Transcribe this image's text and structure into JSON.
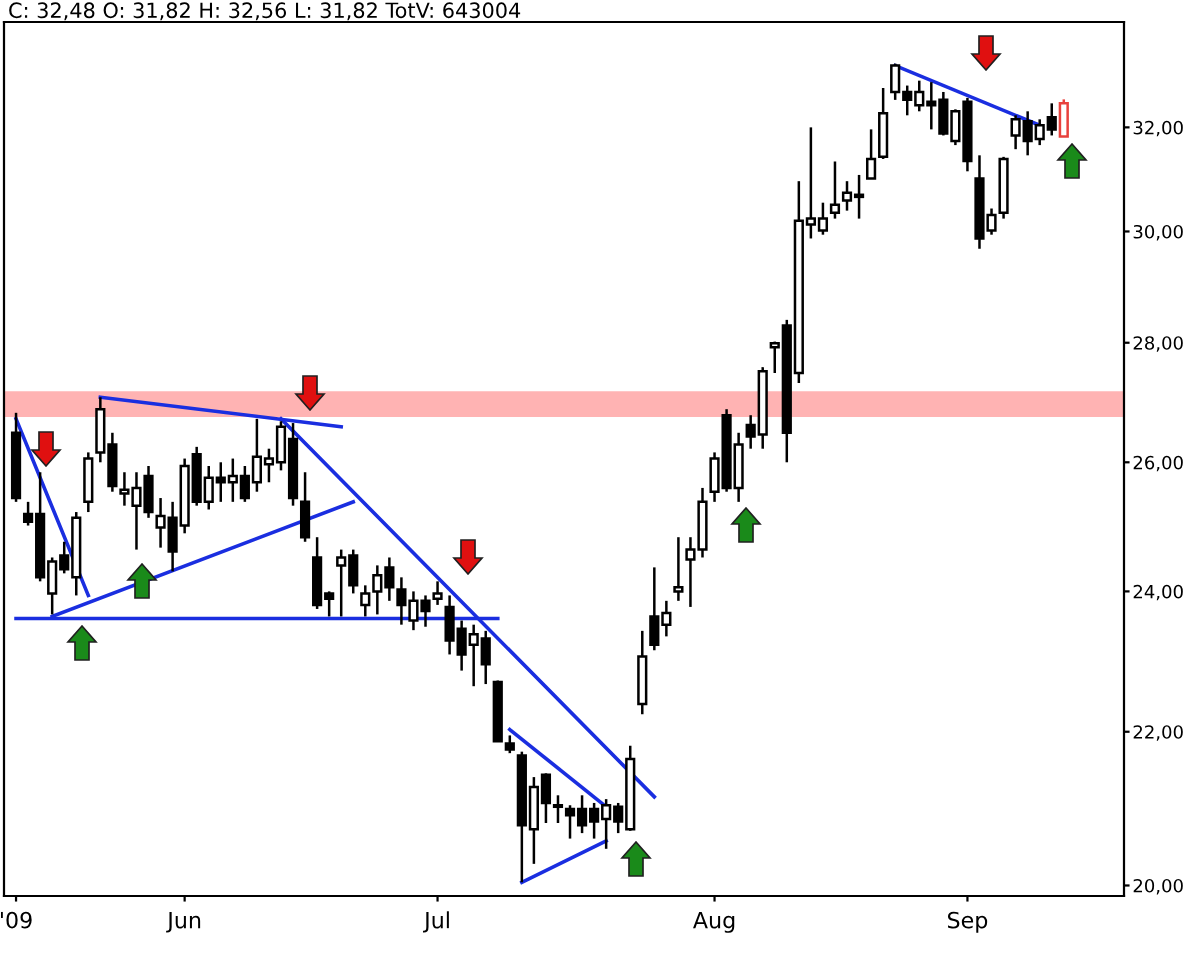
{
  "chart_data": {
    "type": "candlestick",
    "title": "C: 32,48 O: 31,82 H: 32,56 L: 31,82 TotV: 643004",
    "categories": [
      "'09",
      null,
      null,
      null,
      null,
      null,
      null,
      null,
      null,
      null,
      null,
      null,
      null,
      null,
      "Jun",
      null,
      null,
      null,
      null,
      null,
      null,
      null,
      null,
      null,
      null,
      null,
      null,
      null,
      null,
      null,
      null,
      null,
      null,
      null,
      null,
      "Jul",
      null,
      null,
      null,
      null,
      null,
      null,
      null,
      null,
      null,
      null,
      null,
      null,
      null,
      null,
      null,
      null,
      null,
      null,
      null,
      null,
      null,
      null,
      "Aug",
      null,
      null,
      null,
      null,
      null,
      null,
      null,
      null,
      null,
      null,
      null,
      null,
      null,
      null,
      null,
      null,
      null,
      null,
      null,
      null,
      "Sep",
      null,
      null,
      null,
      null,
      null,
      null,
      null,
      null
    ],
    "ohlc": [
      [
        26.48,
        26.81,
        25.37,
        25.43
      ],
      [
        25.18,
        25.37,
        25.0,
        25.06
      ],
      [
        25.18,
        25.84,
        24.15,
        24.21
      ],
      [
        23.97,
        24.51,
        23.66,
        24.45
      ],
      [
        24.54,
        24.75,
        24.27,
        24.33
      ],
      [
        24.21,
        25.21,
        23.94,
        25.12
      ],
      [
        25.37,
        26.16,
        25.21,
        26.06
      ],
      [
        26.16,
        27.07,
        26.0,
        26.87
      ],
      [
        26.29,
        26.48,
        25.53,
        25.62
      ],
      [
        25.5,
        25.84,
        25.31,
        25.56
      ],
      [
        25.31,
        25.84,
        24.63,
        25.59
      ],
      [
        25.78,
        25.94,
        25.12,
        25.21
      ],
      [
        24.97,
        25.43,
        24.66,
        25.15
      ],
      [
        25.12,
        25.37,
        24.3,
        24.6
      ],
      [
        25.0,
        26.06,
        24.88,
        25.94
      ],
      [
        26.13,
        26.25,
        25.31,
        25.37
      ],
      [
        25.37,
        25.94,
        25.25,
        25.75
      ],
      [
        25.75,
        26.0,
        25.37,
        25.68
      ],
      [
        25.68,
        26.06,
        25.37,
        25.78
      ],
      [
        25.78,
        25.94,
        25.37,
        25.43
      ],
      [
        25.68,
        26.71,
        25.53,
        26.09
      ],
      [
        25.97,
        26.22,
        25.68,
        26.06
      ],
      [
        26.0,
        26.67,
        25.87,
        26.58
      ],
      [
        26.38,
        26.64,
        25.31,
        25.43
      ],
      [
        25.37,
        25.84,
        24.75,
        24.82
      ],
      [
        24.51,
        24.82,
        23.74,
        23.8
      ],
      [
        23.97,
        24.0,
        23.63,
        23.89
      ],
      [
        24.39,
        24.63,
        23.63,
        24.51
      ],
      [
        24.54,
        24.63,
        23.97,
        24.09
      ],
      [
        23.8,
        24.09,
        23.63,
        23.97
      ],
      [
        24.0,
        24.39,
        23.66,
        24.24
      ],
      [
        24.36,
        24.51,
        23.86,
        24.06
      ],
      [
        24.03,
        24.21,
        23.51,
        23.8
      ],
      [
        23.57,
        24.0,
        23.43,
        23.86
      ],
      [
        23.86,
        23.94,
        23.48,
        23.71
      ],
      [
        23.89,
        24.15,
        23.8,
        23.97
      ],
      [
        23.77,
        23.94,
        23.08,
        23.28
      ],
      [
        23.45,
        23.57,
        22.85,
        23.08
      ],
      [
        23.22,
        23.51,
        22.63,
        23.37
      ],
      [
        23.31,
        23.42,
        22.66,
        22.94
      ],
      [
        22.69,
        22.71,
        21.87,
        21.87
      ],
      [
        21.84,
        21.95,
        21.71,
        21.76
      ],
      [
        21.68,
        21.73,
        20.04,
        20.76
      ],
      [
        20.71,
        21.39,
        20.27,
        21.26
      ],
      [
        21.42,
        21.44,
        20.79,
        21.05
      ],
      [
        21.0,
        21.15,
        20.79,
        21.02
      ],
      [
        20.97,
        21.02,
        20.59,
        20.89
      ],
      [
        20.97,
        21.15,
        20.66,
        20.76
      ],
      [
        20.97,
        21.05,
        20.59,
        20.81
      ],
      [
        20.84,
        21.1,
        20.46,
        21.02
      ],
      [
        21.0,
        21.05,
        20.66,
        20.81
      ],
      [
        20.71,
        21.81,
        20.69,
        21.63
      ],
      [
        22.38,
        23.42,
        22.24,
        23.05
      ],
      [
        23.63,
        24.36,
        23.14,
        23.22
      ],
      [
        23.51,
        23.86,
        23.34,
        23.68
      ],
      [
        24.0,
        24.82,
        23.86,
        24.06
      ],
      [
        24.48,
        24.82,
        23.77,
        24.63
      ],
      [
        24.63,
        25.59,
        24.51,
        25.37
      ],
      [
        25.53,
        26.16,
        25.37,
        26.06
      ],
      [
        26.77,
        26.87,
        25.53,
        25.59
      ],
      [
        25.59,
        26.48,
        25.37,
        26.29
      ],
      [
        26.61,
        26.77,
        26.22,
        26.42
      ],
      [
        26.45,
        27.58,
        26.22,
        27.51
      ],
      [
        27.92,
        28.02,
        27.48,
        27.99
      ],
      [
        28.3,
        28.4,
        26.0,
        26.48
      ],
      [
        27.48,
        30.95,
        27.31,
        30.2
      ],
      [
        30.13,
        32.0,
        29.87,
        30.24
      ],
      [
        30.02,
        30.54,
        29.94,
        30.24
      ],
      [
        30.35,
        31.33,
        30.24,
        30.5
      ],
      [
        30.58,
        30.95,
        30.39,
        30.73
      ],
      [
        30.65,
        31.07,
        30.24,
        30.69
      ],
      [
        31.0,
        31.96,
        31.0,
        31.38
      ],
      [
        31.42,
        32.79,
        31.38,
        32.28
      ],
      [
        32.71,
        33.29,
        32.55,
        33.25
      ],
      [
        32.71,
        32.84,
        32.24,
        32.55
      ],
      [
        32.44,
        32.94,
        32.32,
        32.71
      ],
      [
        32.51,
        32.91,
        31.96,
        32.44
      ],
      [
        32.55,
        32.71,
        31.84,
        31.88
      ],
      [
        31.73,
        32.36,
        31.65,
        32.32
      ],
      [
        32.51,
        32.59,
        31.14,
        31.34
      ],
      [
        31.0,
        31.45,
        29.68,
        29.87
      ],
      [
        30.02,
        30.43,
        29.94,
        30.31
      ],
      [
        30.35,
        31.42,
        30.24,
        31.38
      ],
      [
        31.84,
        32.24,
        31.57,
        32.16
      ],
      [
        32.12,
        32.32,
        31.45,
        31.73
      ],
      [
        31.77,
        32.16,
        31.65,
        32.04
      ],
      [
        32.2,
        32.48,
        31.84,
        31.96
      ],
      [
        31.82,
        32.56,
        31.82,
        32.48
      ]
    ],
    "colors": [
      "#000000",
      "#000000",
      "#000000",
      "#000000",
      "#000000",
      "#000000",
      "#000000",
      "#000000",
      "#000000",
      "#000000",
      "#000000",
      "#000000",
      "#000000",
      "#000000",
      "#000000",
      "#000000",
      "#000000",
      "#000000",
      "#000000",
      "#000000",
      "#000000",
      "#000000",
      "#000000",
      "#000000",
      "#000000",
      "#000000",
      "#000000",
      "#000000",
      "#000000",
      "#000000",
      "#000000",
      "#000000",
      "#000000",
      "#000000",
      "#000000",
      "#000000",
      "#000000",
      "#000000",
      "#000000",
      "#000000",
      "#000000",
      "#000000",
      "#000000",
      "#000000",
      "#000000",
      "#000000",
      "#000000",
      "#000000",
      "#000000",
      "#000000",
      "#000000",
      "#000000",
      "#000000",
      "#000000",
      "#000000",
      "#000000",
      "#000000",
      "#000000",
      "#000000",
      "#000000",
      "#000000",
      "#000000",
      "#000000",
      "#000000",
      "#000000",
      "#000000",
      "#000000",
      "#000000",
      "#000000",
      "#000000",
      "#000000",
      "#000000",
      "#000000",
      "#000000",
      "#000000",
      "#000000",
      "#000000",
      "#000000",
      "#000000",
      "#000000",
      "#000000",
      "#000000",
      "#000000",
      "#000000",
      "#000000",
      "#000000",
      "#000000",
      "#e8413c"
    ],
    "series": [
      {
        "type": "line",
        "color": "#1a2ee0",
        "values": [
          26.71,
          null,
          null,
          null,
          null,
          null,
          23.94,
          null,
          null,
          null,
          null,
          null,
          null,
          null,
          null,
          null,
          null,
          null,
          null,
          null,
          null,
          null,
          null,
          null,
          null,
          null,
          null,
          null,
          null,
          null,
          null,
          null,
          null,
          null,
          null,
          null,
          null,
          null,
          null,
          null,
          null,
          null,
          null,
          null,
          null,
          null,
          null,
          null,
          null,
          null,
          null,
          null,
          null,
          null,
          null,
          null,
          null,
          null,
          null,
          null,
          null,
          null,
          null,
          null,
          null,
          null,
          null,
          null,
          null,
          null,
          null,
          null,
          null,
          null,
          null,
          null,
          null,
          null,
          null,
          null,
          null,
          null,
          null,
          null,
          null,
          null,
          null,
          null
        ]
      },
      {
        "type": "line",
        "color": "#1a2ee0",
        "values": [
          23.6,
          null,
          null,
          null,
          null,
          null,
          null,
          null,
          null,
          null,
          null,
          null,
          null,
          null,
          null,
          null,
          null,
          null,
          null,
          null,
          null,
          null,
          null,
          null,
          null,
          null,
          null,
          null,
          null,
          null,
          null,
          null,
          null,
          null,
          null,
          null,
          null,
          null,
          null,
          null,
          23.6,
          null,
          null,
          null,
          null,
          null,
          null,
          null,
          null,
          null,
          null,
          null,
          null,
          null,
          null,
          null,
          null,
          null,
          null,
          null,
          null,
          null,
          null,
          null,
          null,
          null,
          null,
          null,
          null,
          null,
          null,
          null,
          null,
          null,
          null,
          null,
          null,
          null,
          null,
          null,
          null,
          null,
          null,
          null,
          null,
          null,
          null,
          null
        ]
      },
      {
        "type": "line",
        "color": "#1a2ee0",
        "values": [
          null,
          null,
          null,
          23.63,
          null,
          null,
          null,
          null,
          null,
          null,
          null,
          null,
          null,
          null,
          null,
          null,
          null,
          null,
          null,
          null,
          null,
          null,
          null,
          null,
          null,
          null,
          null,
          null,
          25.37,
          null,
          null,
          null,
          null,
          null,
          null,
          null,
          null,
          null,
          null,
          null,
          null,
          null,
          null,
          null,
          null,
          null,
          null,
          null,
          null,
          null,
          null,
          null,
          null,
          null,
          null,
          null,
          null,
          null,
          null,
          null,
          null,
          null,
          null,
          null,
          null,
          null,
          null,
          null,
          null,
          null,
          null,
          null,
          null,
          null,
          null,
          null,
          null,
          null,
          null,
          null,
          null,
          null,
          null,
          null,
          null,
          null,
          null,
          null
        ]
      },
      {
        "type": "line",
        "color": "#1a2ee0",
        "values": [
          null,
          null,
          null,
          null,
          null,
          null,
          null,
          27.07,
          null,
          null,
          null,
          null,
          null,
          null,
          null,
          null,
          null,
          null,
          null,
          null,
          null,
          null,
          null,
          null,
          null,
          null,
          null,
          26.58,
          null,
          null,
          null,
          null,
          null,
          null,
          null,
          null,
          null,
          null,
          null,
          null,
          null,
          null,
          null,
          null,
          null,
          null,
          null,
          null,
          null,
          null,
          null,
          null,
          null,
          null,
          null,
          null,
          null,
          null,
          null,
          null,
          null,
          null,
          null,
          null,
          null,
          null,
          null,
          null,
          null,
          null,
          null,
          null,
          null,
          null,
          null,
          null,
          null,
          null,
          null,
          null,
          null,
          null,
          null,
          null,
          null,
          null,
          null,
          null
        ]
      },
      {
        "type": "line",
        "color": "#1a2ee0",
        "values": [
          null,
          null,
          null,
          null,
          null,
          null,
          null,
          null,
          null,
          null,
          null,
          null,
          null,
          null,
          null,
          null,
          null,
          null,
          null,
          null,
          null,
          null,
          26.71,
          null,
          null,
          null,
          null,
          null,
          null,
          null,
          null,
          null,
          null,
          null,
          null,
          null,
          null,
          null,
          null,
          null,
          null,
          null,
          null,
          null,
          null,
          null,
          null,
          null,
          null,
          null,
          null,
          null,
          null,
          21.13,
          null,
          null,
          null,
          null,
          null,
          null,
          null,
          null,
          null,
          null,
          null,
          null,
          null,
          null,
          null,
          null,
          null,
          null,
          null,
          null,
          null,
          null,
          null,
          null,
          null,
          null,
          null,
          null,
          null,
          null,
          null,
          null,
          null,
          null
        ]
      },
      {
        "type": "line",
        "color": "#1a2ee0",
        "values": [
          null,
          null,
          null,
          null,
          null,
          null,
          null,
          null,
          null,
          null,
          null,
          null,
          null,
          null,
          null,
          null,
          null,
          null,
          null,
          null,
          null,
          null,
          null,
          null,
          null,
          null,
          null,
          null,
          null,
          null,
          null,
          null,
          null,
          null,
          null,
          null,
          null,
          null,
          null,
          null,
          null,
          22.03,
          null,
          null,
          null,
          null,
          null,
          null,
          null,
          21.0,
          null,
          null,
          null,
          null,
          null,
          null,
          null,
          null,
          null,
          null,
          null,
          null,
          null,
          null,
          null,
          null,
          null,
          null,
          null,
          null,
          null,
          null,
          null,
          null,
          null,
          null,
          null,
          null,
          null,
          null,
          null,
          null,
          null,
          null,
          null,
          null,
          null,
          null
        ]
      },
      {
        "type": "line",
        "color": "#1a2ee0",
        "values": [
          null,
          null,
          null,
          null,
          null,
          null,
          null,
          null,
          null,
          null,
          null,
          null,
          null,
          null,
          null,
          null,
          null,
          null,
          null,
          null,
          null,
          null,
          null,
          null,
          null,
          null,
          null,
          null,
          null,
          null,
          null,
          null,
          null,
          null,
          null,
          null,
          null,
          null,
          null,
          null,
          null,
          null,
          20.04,
          null,
          null,
          null,
          null,
          null,
          null,
          20.56,
          null,
          null,
          null,
          null,
          null,
          null,
          null,
          null,
          null,
          null,
          null,
          null,
          null,
          null,
          null,
          null,
          null,
          null,
          null,
          null,
          null,
          null,
          null,
          null,
          null,
          null,
          null,
          null,
          null,
          null,
          null,
          null,
          null,
          null,
          null,
          null,
          null,
          null
        ]
      },
      {
        "type": "line",
        "color": "#1a2ee0",
        "values": [
          null,
          null,
          null,
          null,
          null,
          null,
          null,
          null,
          null,
          null,
          null,
          null,
          null,
          null,
          null,
          null,
          null,
          null,
          null,
          null,
          null,
          null,
          null,
          null,
          null,
          null,
          null,
          null,
          null,
          null,
          null,
          null,
          null,
          null,
          null,
          null,
          null,
          null,
          null,
          null,
          null,
          null,
          null,
          null,
          null,
          null,
          null,
          null,
          null,
          null,
          null,
          null,
          null,
          null,
          null,
          null,
          null,
          null,
          null,
          null,
          null,
          null,
          null,
          null,
          null,
          null,
          null,
          null,
          null,
          null,
          null,
          null,
          null,
          33.25,
          null,
          null,
          null,
          null,
          null,
          null,
          null,
          null,
          null,
          null,
          null,
          32.04,
          null,
          null
        ]
      }
    ],
    "bands": [
      {
        "axis": "y",
        "from": 26.74,
        "to": 27.17,
        "color": "#ffb3b3"
      }
    ],
    "log": "y",
    "ylim": [
      19.87,
      34.16
    ],
    "yticks": [
      {
        "value": 20,
        "label": "20,00"
      },
      {
        "value": 22,
        "label": "22,00"
      },
      {
        "value": 24,
        "label": "24,00"
      },
      {
        "value": 26,
        "label": "26,00"
      },
      {
        "value": 28,
        "label": "28,00"
      },
      {
        "value": 30,
        "label": "30,00"
      },
      {
        "value": 32,
        "label": "32,00"
      }
    ],
    "grid": false
  }
}
